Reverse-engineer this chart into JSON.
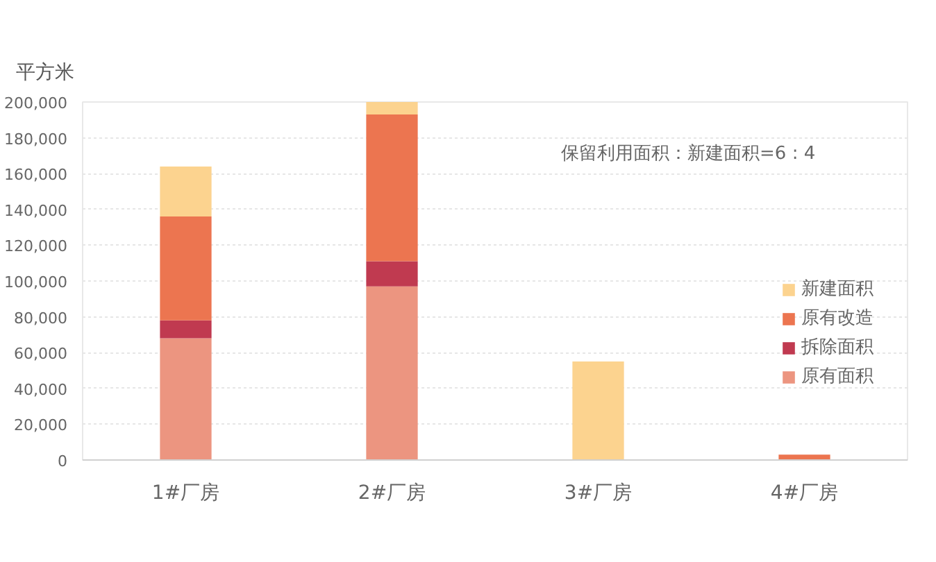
{
  "chart_data": {
    "type": "bar",
    "ylabel": "平方米",
    "categories": [
      "1#厂房",
      "2#厂房",
      "3#厂房",
      "4#厂房"
    ],
    "stacked": true,
    "series": [
      {
        "name": "原有面积",
        "color": "#ec9580",
        "values": [
          68000,
          97000,
          null,
          null
        ]
      },
      {
        "name": "拆除面积",
        "color": "#c03a50",
        "values": [
          10000,
          14000,
          null,
          null
        ]
      },
      {
        "name": "原有改造",
        "color": "#ec7550",
        "values": [
          58000,
          82000,
          null,
          3000
        ]
      },
      {
        "name": "新建面积",
        "color": "#fcd38f",
        "values": [
          28000,
          7000,
          55000,
          null
        ]
      }
    ],
    "ylim": [
      0,
      200000
    ],
    "yticks": [
      0,
      {
        "value": 20000,
        "label": "20,000"
      },
      {
        "value": 40000,
        "label": "40,000"
      },
      {
        "value": 60000,
        "label": "60,000"
      },
      {
        "value": 80000,
        "label": "80,000"
      },
      {
        "value": 100000,
        "label": "100,000"
      },
      {
        "value": 120000,
        "label": "120,000"
      },
      {
        "value": 140000,
        "label": "140,000"
      },
      {
        "value": 160000,
        "label": "160,000"
      },
      {
        "value": 180000,
        "label": "180,000"
      },
      {
        "value": 200000,
        "label": "200,000"
      }
    ],
    "grid": "y",
    "legend": "right",
    "annotations": [
      "保留利用面积：新建面积=6 : 4"
    ]
  }
}
